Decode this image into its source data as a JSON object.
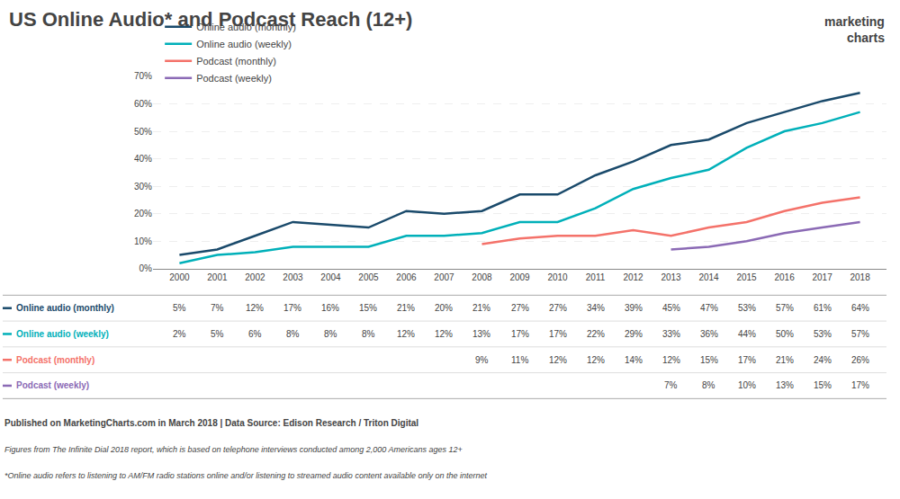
{
  "chart_data": {
    "type": "line",
    "title": "US Online Audio* and Podcast Reach (12+)",
    "x": [
      2000,
      2001,
      2002,
      2003,
      2004,
      2005,
      2006,
      2007,
      2008,
      2009,
      2010,
      2011,
      2012,
      2013,
      2014,
      2015,
      2016,
      2017,
      2018
    ],
    "xlim": [
      1999.3,
      2018.7
    ],
    "xticks": [
      2000,
      2001,
      2002,
      2003,
      2004,
      2005,
      2006,
      2007,
      2008,
      2009,
      2010,
      2011,
      2012,
      2013,
      2014,
      2015,
      2016,
      2017,
      2018
    ],
    "ylim": [
      0,
      70
    ],
    "yticks": [
      {
        "value": 0,
        "label": "0%"
      },
      {
        "value": 10,
        "label": "10%"
      },
      {
        "value": 20,
        "label": "20%"
      },
      {
        "value": 30,
        "label": "30%"
      },
      {
        "value": 40,
        "label": "40%"
      },
      {
        "value": 50,
        "label": "50%"
      },
      {
        "value": 60,
        "label": "60%"
      },
      {
        "value": 70,
        "label": "70%"
      }
    ],
    "grid": true,
    "legend": "upper left",
    "series": [
      {
        "name": "Online audio (monthly)",
        "color": "#1a4a6b",
        "values": [
          5,
          7,
          12,
          17,
          16,
          15,
          21,
          20,
          21,
          27,
          27,
          34,
          39,
          45,
          47,
          53,
          57,
          61,
          64
        ],
        "value_labels": [
          "5%",
          "7%",
          "12%",
          "17%",
          "16%",
          "15%",
          "21%",
          "20%",
          "21%",
          "27%",
          "27%",
          "34%",
          "39%",
          "45%",
          "47%",
          "53%",
          "57%",
          "61%",
          "64%"
        ]
      },
      {
        "name": "Online audio (weekly)",
        "color": "#00b0b9",
        "values": [
          2,
          5,
          6,
          8,
          8,
          8,
          12,
          12,
          13,
          17,
          17,
          22,
          29,
          33,
          36,
          44,
          50,
          53,
          57
        ],
        "value_labels": [
          "2%",
          "5%",
          "6%",
          "8%",
          "8%",
          "8%",
          "12%",
          "12%",
          "13%",
          "17%",
          "17%",
          "22%",
          "29%",
          "33%",
          "36%",
          "44%",
          "50%",
          "53%",
          "57%"
        ]
      },
      {
        "name": "Podcast (monthly)",
        "color": "#f4726a",
        "values": [
          null,
          null,
          null,
          null,
          null,
          null,
          null,
          null,
          9,
          11,
          12,
          12,
          14,
          12,
          15,
          17,
          21,
          24,
          26
        ],
        "value_labels": [
          null,
          null,
          null,
          null,
          null,
          null,
          null,
          null,
          "9%",
          "11%",
          "12%",
          "12%",
          "14%",
          "12%",
          "15%",
          "17%",
          "21%",
          "24%",
          "26%"
        ]
      },
      {
        "name": "Podcast (weekly)",
        "color": "#8b6ab5",
        "values": [
          null,
          null,
          null,
          null,
          null,
          null,
          null,
          null,
          null,
          null,
          null,
          null,
          null,
          7,
          8,
          10,
          13,
          15,
          17
        ],
        "value_labels": [
          null,
          null,
          null,
          null,
          null,
          null,
          null,
          null,
          null,
          null,
          null,
          null,
          null,
          "7%",
          "8%",
          "10%",
          "13%",
          "15%",
          "17%"
        ]
      }
    ],
    "annotations": [
      {
        "text": "Published on MarketingCharts.com in March 2018 | Data Source: Edison Research / Triton Digital"
      },
      {
        "text": "Figures from The Infinite Dial 2018 report, which is based on telephone interviews conducted among 2,000 Americans ages 12+"
      },
      {
        "text": "*Online audio refers to listening to AM/FM radio stations online and/or listening to streamed audio content available only on the internet"
      },
      {
        "text": "marketing"
      },
      {
        "text": "charts"
      }
    ]
  }
}
